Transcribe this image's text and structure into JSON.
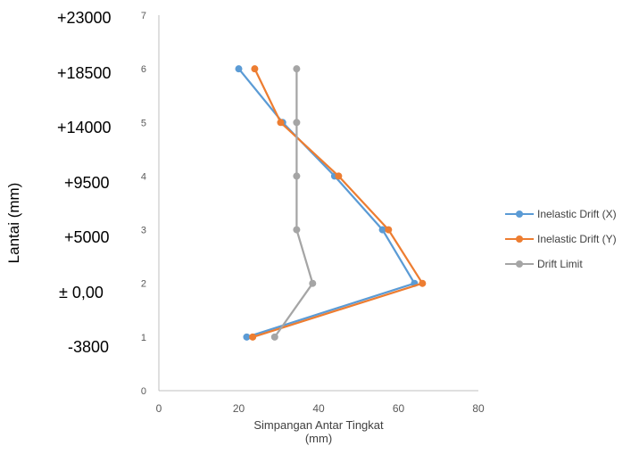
{
  "chart_data": {
    "type": "line",
    "orientation": "vertical-profile",
    "xlabel_line1": "Simpangan Antar Tingkat",
    "xlabel_line2": "(mm)",
    "ylabel": "Lantai (mm)",
    "xlim": [
      0,
      80
    ],
    "x_ticks": [
      "0",
      "20",
      "40",
      "60",
      "80"
    ],
    "ylim": [
      0,
      7
    ],
    "y_ticks": [
      "0",
      "1",
      "2",
      "3",
      "4",
      "5",
      "6",
      "7"
    ],
    "floor_labels": [
      "+23000",
      "+18500",
      "+14000",
      "+9500",
      "+5000",
      "± 0,00",
      "-3800"
    ],
    "legend_position": "right",
    "grid": false,
    "series": [
      {
        "name": "Inelastic Drift (X)",
        "color": "#5b9bd5",
        "points": [
          {
            "x": 22,
            "y": 1
          },
          {
            "x": 64,
            "y": 2
          },
          {
            "x": 56,
            "y": 3
          },
          {
            "x": 44,
            "y": 4
          },
          {
            "x": 31,
            "y": 5
          },
          {
            "x": 20,
            "y": 6
          }
        ]
      },
      {
        "name": "Inelastic Drift (Y)",
        "color": "#ed7d31",
        "points": [
          {
            "x": 23.5,
            "y": 1
          },
          {
            "x": 66,
            "y": 2
          },
          {
            "x": 57.5,
            "y": 3
          },
          {
            "x": 45,
            "y": 4
          },
          {
            "x": 30.5,
            "y": 5
          },
          {
            "x": 24,
            "y": 6
          }
        ]
      },
      {
        "name": "Drift Limit",
        "color": "#a5a5a5",
        "points": [
          {
            "x": 29,
            "y": 1
          },
          {
            "x": 38.5,
            "y": 2
          },
          {
            "x": 34.5,
            "y": 3
          },
          {
            "x": 34.5,
            "y": 4
          },
          {
            "x": 34.5,
            "y": 5
          },
          {
            "x": 34.5,
            "y": 6
          }
        ]
      }
    ]
  }
}
